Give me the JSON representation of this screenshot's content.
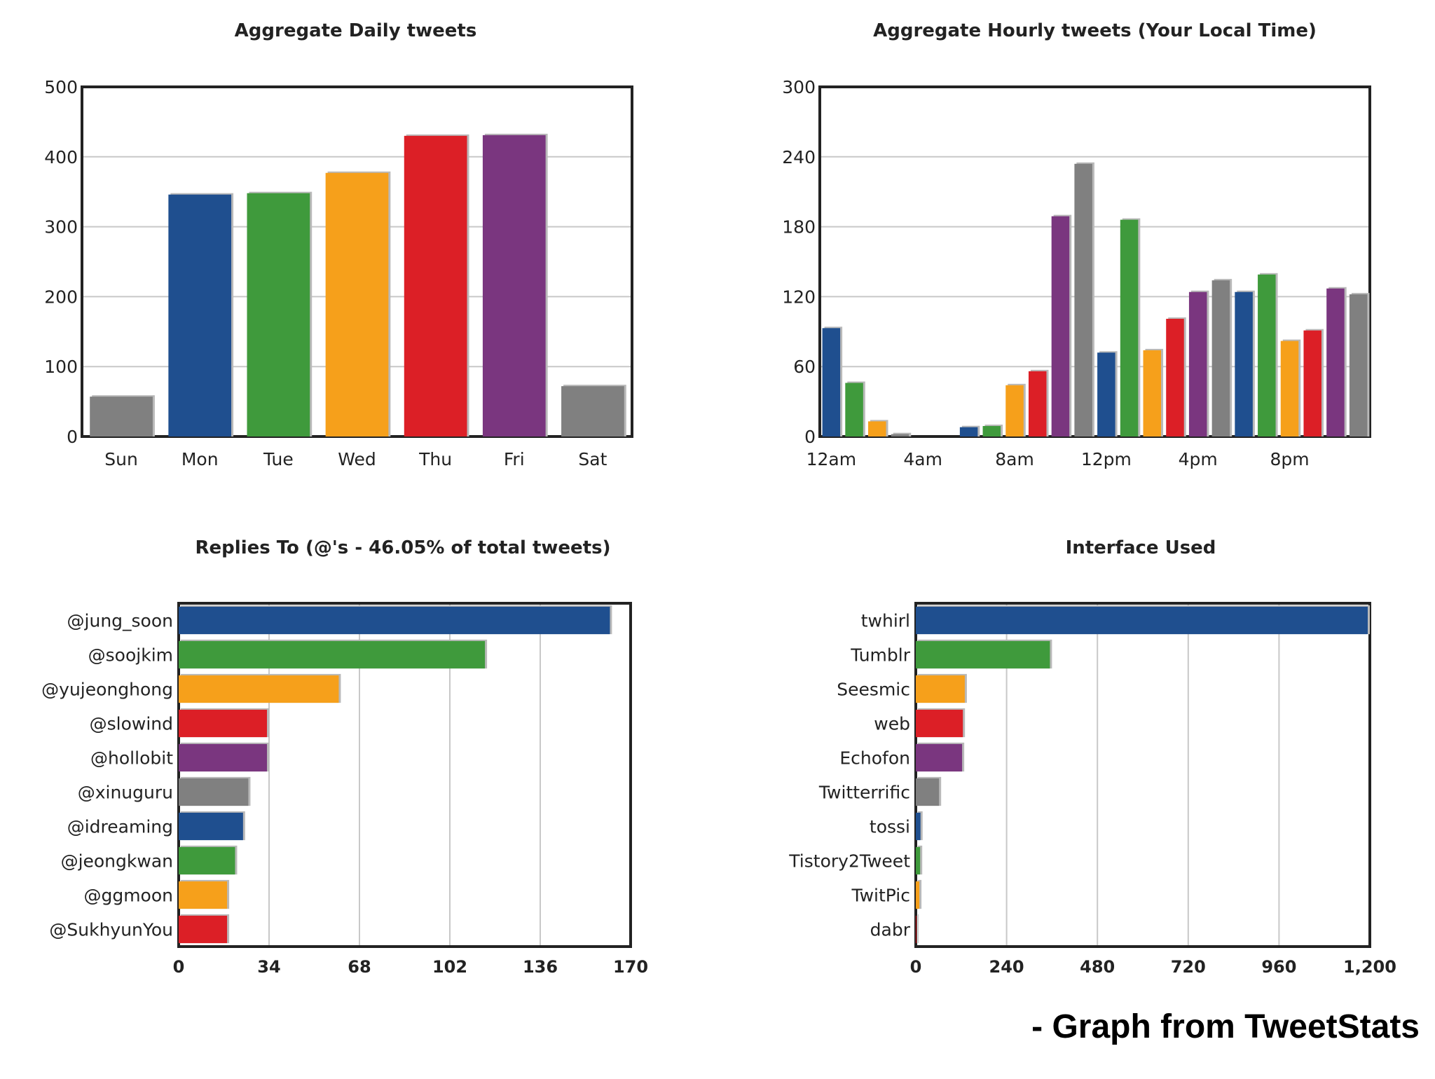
{
  "colors": {
    "blue": "#1f4f8f",
    "green": "#3f9a3c",
    "orange": "#f6a01b",
    "red": "#dc1f26",
    "purple": "#7a367f",
    "gray": "#808080",
    "axis": "#222222",
    "grid": "#c8c8c8"
  },
  "credit": "- Graph from TweetStats",
  "chart_data": [
    {
      "type": "bar",
      "title": "Aggregate Daily tweets",
      "categories": [
        "Sun",
        "Mon",
        "Tue",
        "Wed",
        "Thu",
        "Fri",
        "Sat"
      ],
      "values": [
        57,
        346,
        348,
        377,
        430,
        431,
        72
      ],
      "bar_colors": [
        "gray",
        "blue",
        "green",
        "orange",
        "red",
        "purple",
        "gray"
      ],
      "ylim": [
        0,
        500
      ],
      "yticks": [
        "0",
        "100",
        "200",
        "300",
        "400",
        "500"
      ],
      "grid": true
    },
    {
      "type": "bar",
      "title": "Aggregate Hourly tweets (Your Local Time)",
      "categories": [
        "12am",
        "1am",
        "2am",
        "3am",
        "4am",
        "5am",
        "6am",
        "7am",
        "8am",
        "9am",
        "10am",
        "11am",
        "12pm",
        "1pm",
        "2pm",
        "3pm",
        "4pm",
        "5pm",
        "6pm",
        "7pm",
        "8pm",
        "9pm",
        "10pm",
        "11pm"
      ],
      "values": [
        93,
        46,
        13,
        2,
        0,
        0,
        8,
        9,
        44,
        56,
        189,
        234,
        72,
        186,
        74,
        101,
        124,
        134,
        124,
        139,
        82,
        91,
        127,
        122
      ],
      "bar_colors": [
        "blue",
        "green",
        "orange",
        "gray",
        "red",
        "purple",
        "blue",
        "green",
        "orange",
        "red",
        "purple",
        "gray",
        "blue",
        "green",
        "orange",
        "red",
        "purple",
        "gray",
        "blue",
        "green",
        "orange",
        "red",
        "purple",
        "gray"
      ],
      "xtick_labels": [
        "12am",
        "4am",
        "8am",
        "12pm",
        "4pm",
        "8pm"
      ],
      "ylim": [
        0,
        300
      ],
      "yticks": [
        "0",
        "60",
        "120",
        "180",
        "240",
        "300"
      ],
      "grid": true
    },
    {
      "type": "bar",
      "orientation": "horizontal",
      "title": "Replies To (@'s - 46.05% of total tweets)",
      "categories": [
        "@jung_soon",
        "@soojkim",
        "@yujeonghong",
        "@slowind",
        "@hollobit",
        "@xinuguru",
        "@idreaming",
        "@jeongkwan",
        "@ggmoon",
        "@SukhyunYou"
      ],
      "values": [
        163,
        116,
        61,
        34,
        34,
        27,
        25,
        22,
        19,
        19
      ],
      "bar_colors": [
        "blue",
        "green",
        "orange",
        "red",
        "purple",
        "gray",
        "blue",
        "green",
        "orange",
        "red"
      ],
      "xlim": [
        0,
        170
      ],
      "xticks": [
        "0",
        "34",
        "68",
        "102",
        "136",
        "170"
      ],
      "grid": true
    },
    {
      "type": "bar",
      "orientation": "horizontal",
      "title": "Interface Used",
      "categories": [
        "twhirl",
        "Tumblr",
        "Seesmic",
        "web",
        "Echofon",
        "Twitterrific",
        "tossi",
        "Tistory2Tweet",
        "TwitPic",
        "dabr"
      ],
      "values": [
        1200,
        360,
        135,
        130,
        128,
        67,
        18,
        17,
        15,
        7
      ],
      "bar_colors": [
        "blue",
        "green",
        "orange",
        "red",
        "purple",
        "gray",
        "blue",
        "green",
        "orange",
        "red"
      ],
      "xlim": [
        0,
        1200
      ],
      "xticks": [
        "0",
        "240",
        "480",
        "720",
        "960",
        "1,200"
      ],
      "grid": true
    }
  ]
}
